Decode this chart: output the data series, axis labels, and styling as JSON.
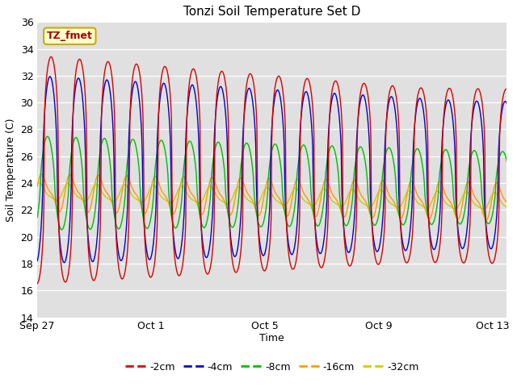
{
  "title": "Tonzi Soil Temperature Set D",
  "xlabel": "Time",
  "ylabel": "Soil Temperature (C)",
  "ylim": [
    14,
    36
  ],
  "yticks": [
    14,
    16,
    18,
    20,
    22,
    24,
    26,
    28,
    30,
    32,
    34,
    36
  ],
  "plot_bg_color": "#e0e0e0",
  "annotation_text": "TZ_fmet",
  "annotation_bg": "#ffffcc",
  "annotation_border": "#ccaa00",
  "series_colors": {
    "-2cm": "#dd0000",
    "-4cm": "#0000cc",
    "-8cm": "#00bb00",
    "-16cm": "#ff9900",
    "-32cm": "#cccc00"
  },
  "legend_colors": [
    "#dd0000",
    "#0000cc",
    "#00bb00",
    "#ff9900",
    "#cccc00"
  ],
  "legend_labels": [
    "-2cm",
    "-4cm",
    "-8cm",
    "-16cm",
    "-32cm"
  ],
  "x_tick_labels": [
    "Sep 27",
    "Oct 1",
    "Oct 5",
    "Oct 9",
    "Oct 13"
  ],
  "x_tick_positions": [
    0,
    4,
    8,
    12,
    16
  ],
  "total_days": 18,
  "samples_per_day": 48
}
